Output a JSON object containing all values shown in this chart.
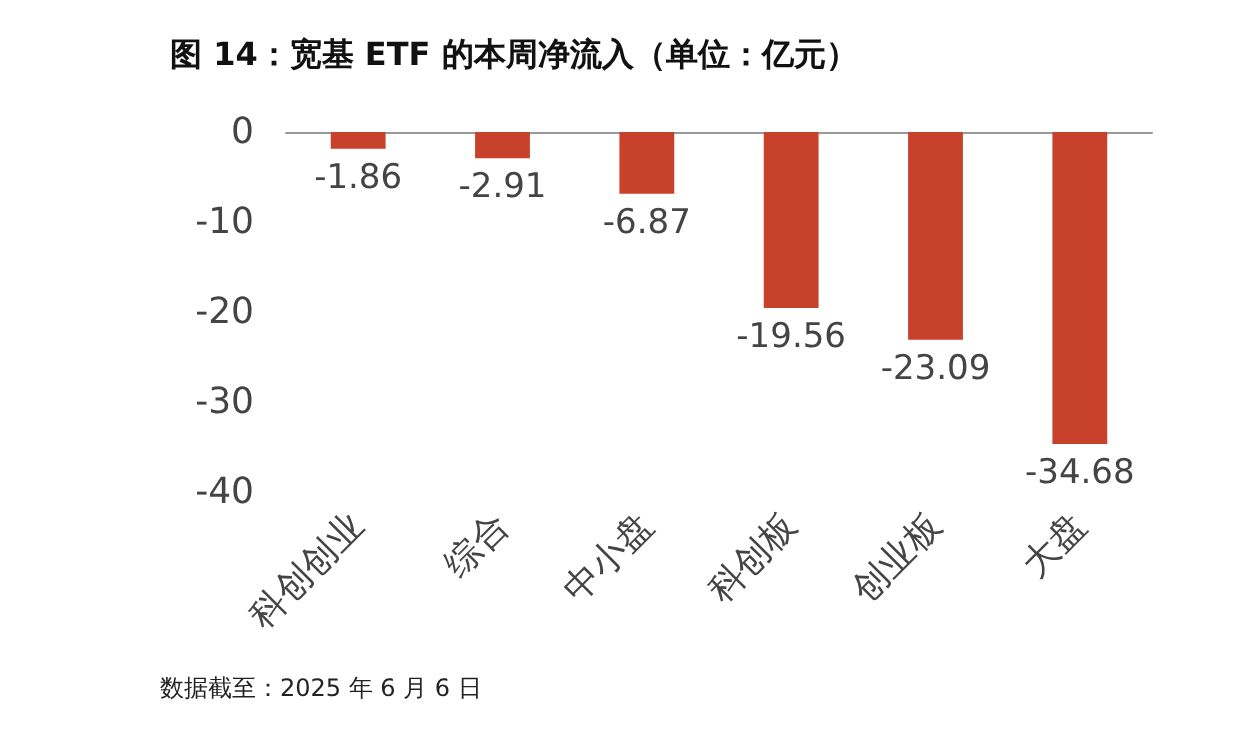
{
  "chart_data": {
    "type": "bar",
    "title": "图 14：宽基 ETF 的本周净流入（单位：亿元）",
    "categories": [
      "科创创业",
      "综合",
      "中小盘",
      "科创板",
      "创业板",
      "大盘"
    ],
    "values": [
      -1.86,
      -2.91,
      -6.87,
      -19.56,
      -23.09,
      -34.68
    ],
    "color": "#c8412a",
    "ylim": [
      -40,
      0
    ],
    "yticks": [
      0,
      -10,
      -20,
      -30,
      -40
    ],
    "grid": false,
    "data_labels": true,
    "annotations": [
      "数据截至：2025 年 6 月 6 日"
    ]
  }
}
